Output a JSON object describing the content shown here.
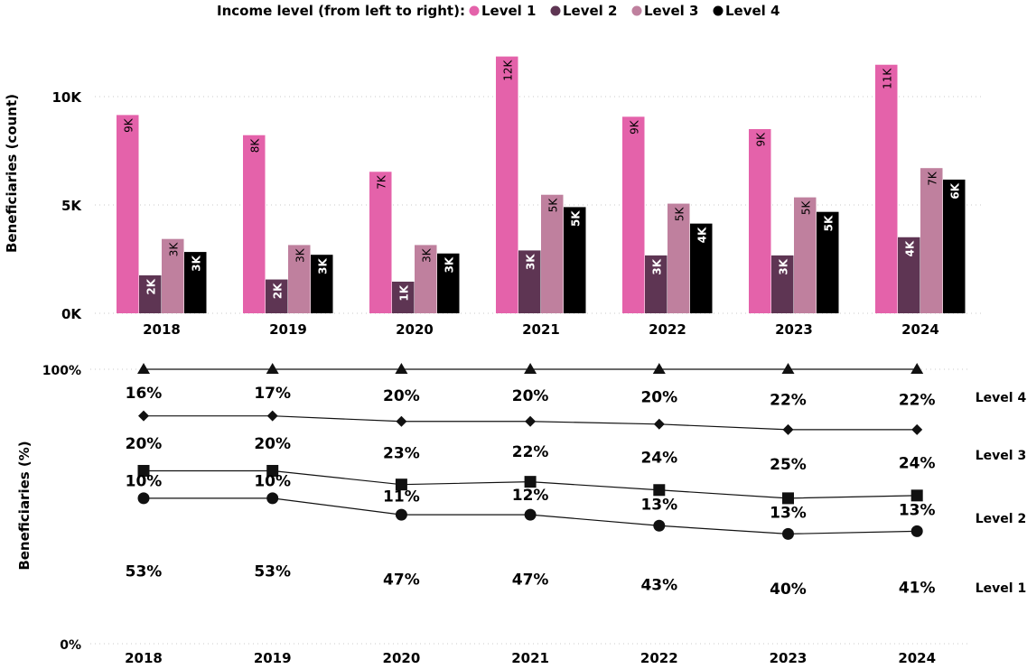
{
  "legend": {
    "title": "Income level (from left to right):",
    "items": [
      {
        "label": "Level 1",
        "color": "#e462aa"
      },
      {
        "label": "Level 2",
        "color": "#5e3553"
      },
      {
        "label": "Level 3",
        "color": "#bf809e"
      },
      {
        "label": "Level 4",
        "color": "#000000"
      }
    ]
  },
  "chart_data": [
    {
      "type": "bar",
      "ylabel": "Beneficiaries (count)",
      "ylim": [
        0,
        12500
      ],
      "yticks": [
        "0K",
        "5K",
        "10K"
      ],
      "ytick_values": [
        0,
        5000,
        10000
      ],
      "grid": "horizontal dotted",
      "categories": [
        "2018",
        "2019",
        "2020",
        "2021",
        "2022",
        "2023",
        "2024"
      ],
      "series": [
        {
          "name": "Level 1",
          "color": "#e462aa",
          "values": [
            9150,
            8220,
            6530,
            11850,
            9070,
            8500,
            11470
          ],
          "labels": [
            "9K",
            "8K",
            "7K",
            "12K",
            "9K",
            "9K",
            "11K"
          ]
        },
        {
          "name": "Level 2",
          "color": "#5e3553",
          "values": [
            1750,
            1560,
            1460,
            2900,
            2670,
            2670,
            3510
          ],
          "labels": [
            "2K",
            "2K",
            "1K",
            "3K",
            "3K",
            "3K",
            "4K"
          ]
        },
        {
          "name": "Level 3",
          "color": "#bf809e",
          "values": [
            3430,
            3150,
            3150,
            5470,
            5060,
            5350,
            6700
          ],
          "labels": [
            "3K",
            "3K",
            "3K",
            "5K",
            "5K",
            "5K",
            "7K"
          ]
        },
        {
          "name": "Level 4",
          "color": "#000000",
          "values": [
            2830,
            2700,
            2760,
            4900,
            4140,
            4680,
            6170
          ],
          "labels": [
            "3K",
            "3K",
            "3K",
            "5K",
            "4K",
            "5K",
            "6K"
          ]
        }
      ]
    },
    {
      "type": "line",
      "ylabel": "Beneficiaries (%)",
      "ylim": [
        0,
        100
      ],
      "yticks": [
        "0%",
        "100%"
      ],
      "ytick_values": [
        0,
        100
      ],
      "stacked": "cumulative",
      "categories": [
        "2018",
        "2019",
        "2020",
        "2021",
        "2022",
        "2023",
        "2024"
      ],
      "series": [
        {
          "name": "Level 1",
          "marker": "circle",
          "values": [
            53,
            53,
            47,
            47,
            43,
            40,
            41
          ],
          "labels": [
            "53%",
            "53%",
            "47%",
            "47%",
            "43%",
            "40%",
            "41%"
          ]
        },
        {
          "name": "Level 2",
          "marker": "square",
          "values": [
            10,
            10,
            11,
            12,
            13,
            13,
            13
          ],
          "labels": [
            "10%",
            "10%",
            "11%",
            "12%",
            "13%",
            "13%",
            "13%"
          ]
        },
        {
          "name": "Level 3",
          "marker": "diamond",
          "values": [
            20,
            20,
            23,
            22,
            24,
            25,
            24
          ],
          "labels": [
            "20%",
            "20%",
            "23%",
            "22%",
            "24%",
            "25%",
            "24%"
          ]
        },
        {
          "name": "Level 4",
          "marker": "triangle",
          "values": [
            16,
            17,
            20,
            20,
            20,
            22,
            22
          ],
          "labels": [
            "16%",
            "17%",
            "20%",
            "20%",
            "20%",
            "22%",
            "22%"
          ]
        }
      ],
      "series_labels": [
        "Level 4",
        "Level 3",
        "Level 2",
        "Level 1"
      ]
    }
  ]
}
